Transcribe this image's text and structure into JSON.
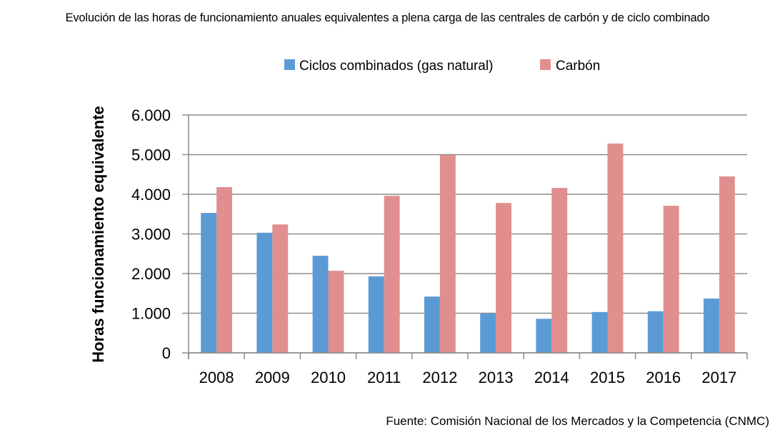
{
  "chart_data": {
    "type": "bar",
    "title": "Evolución de las horas de funcionamiento anuales equivalentes a plena carga de las centrales de carbón y de ciclo combinado",
    "xlabel": "",
    "ylabel": "Horas funcionamiento equivalente",
    "categories": [
      "2008",
      "2009",
      "2010",
      "2011",
      "2012",
      "2013",
      "2014",
      "2015",
      "2016",
      "2017"
    ],
    "series": [
      {
        "name": "Ciclos combinados (gas natural)",
        "color": "#5B9BD5",
        "values": [
          3530,
          3030,
          2450,
          1930,
          1420,
          990,
          860,
          1030,
          1050,
          1370
        ]
      },
      {
        "name": "Carbón",
        "color": "#E18E8E",
        "values": [
          4180,
          3240,
          2070,
          3960,
          4990,
          3780,
          4160,
          5280,
          3710,
          4450
        ]
      }
    ],
    "ylim": [
      0,
      6000
    ],
    "yticks": [
      0,
      1000,
      2000,
      3000,
      4000,
      5000,
      6000
    ],
    "ytick_labels": [
      "0",
      "1.000",
      "2.000",
      "3.000",
      "4.000",
      "5.000",
      "6.000"
    ],
    "grid": true,
    "legend_position": "top-center",
    "source": "Fuente: Comisión Nacional de los Mercados y la Competencia (CNMC)"
  }
}
